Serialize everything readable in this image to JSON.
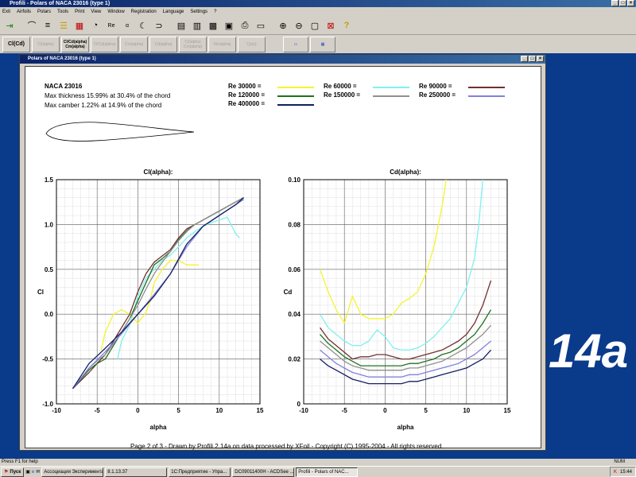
{
  "window": {
    "title": "Profili - Polars of NACA 23016 (type 1)"
  },
  "menu": [
    "Exit",
    "Airfoils",
    "Polars",
    "Tools",
    "Print",
    "View",
    "Window",
    "Registration",
    "Language",
    "Settings",
    "?"
  ],
  "toolbar2": [
    {
      "label": "Cl(Cd)",
      "active": true
    },
    {
      "label": "Cl(alpha)",
      "active": false
    },
    {
      "label": "Cl/Cd(alpha) Cm(alpha)",
      "active": true
    },
    {
      "label": "Cl/Cd(alpha)",
      "active": false
    },
    {
      "label": "Cm(alpha)",
      "active": false
    },
    {
      "label": "Cd(alpha)",
      "active": false
    },
    {
      "label": "Cl(alpha) Cm(alpha)",
      "active": false
    },
    {
      "label": "Xtr(alpha)",
      "active": false
    },
    {
      "label": "Cp(x)",
      "active": false
    }
  ],
  "child": {
    "title": "Polars of NACA 23016 (type 1)"
  },
  "airfoil": {
    "name": "NACA 23016",
    "thickness": "Max thickness 15.99% at 30.4% of the chord",
    "camber": "Max camber 1.22% at 14.9% of the chord"
  },
  "legend": [
    {
      "label": "Re 30000 =",
      "color": "#f4f430"
    },
    {
      "label": "Re 60000 =",
      "color": "#80f0f0"
    },
    {
      "label": "Re 90000 =",
      "color": "#703030"
    },
    {
      "label": "Re 120000 =",
      "color": "#207020"
    },
    {
      "label": "Re 150000 =",
      "color": "#909090"
    },
    {
      "label": "Re 250000 =",
      "color": "#8080e0"
    },
    {
      "label": "Re 400000 =",
      "color": "#102060"
    }
  ],
  "chart_data": [
    {
      "type": "line",
      "title": "Cl(alpha):",
      "xlabel": "alpha",
      "ylabel": "Cl",
      "xlim": [
        -10,
        15
      ],
      "ylim": [
        -1.0,
        1.5
      ],
      "xticks": [
        "-10",
        "-5",
        "0",
        "5",
        "10",
        "15"
      ],
      "yticks": [
        "-1.0",
        "-0.5",
        "0.0",
        "0.5",
        "1.0",
        "1.5"
      ],
      "grid": true,
      "series": [
        {
          "name": "Re 30000",
          "x": [
            -4.5,
            -4,
            -3,
            -2,
            -1,
            0,
            1,
            1.5,
            2,
            3,
            4,
            5,
            6,
            7.5
          ],
          "y": [
            -0.4,
            -0.2,
            0.0,
            0.05,
            0.0,
            -0.1,
            0.02,
            0.15,
            0.35,
            0.5,
            0.6,
            0.6,
            0.55,
            0.55
          ]
        },
        {
          "name": "Re 60000",
          "x": [
            -2.5,
            -2,
            -1,
            0,
            1,
            2,
            3,
            4,
            5,
            6,
            7,
            8,
            9,
            10,
            11,
            12,
            12.5
          ],
          "y": [
            -0.5,
            -0.3,
            -0.12,
            0.2,
            0.4,
            0.5,
            0.6,
            0.66,
            0.75,
            0.85,
            0.92,
            0.98,
            1.02,
            1.05,
            1.08,
            0.9,
            0.85
          ]
        },
        {
          "name": "Re 90000",
          "x": [
            -8,
            -6,
            -5,
            -4,
            -3,
            -2,
            -1,
            0,
            1,
            2,
            3,
            4,
            5,
            6,
            7,
            8,
            9,
            10,
            11,
            12,
            13
          ],
          "y": [
            -0.83,
            -0.65,
            -0.55,
            -0.45,
            -0.3,
            -0.15,
            0.0,
            0.25,
            0.45,
            0.58,
            0.65,
            0.72,
            0.85,
            0.95,
            1.0,
            1.05,
            1.1,
            1.15,
            1.2,
            1.25,
            1.3
          ]
        },
        {
          "name": "Re 120000",
          "x": [
            -8,
            -6,
            -5,
            -4,
            -3,
            -2,
            -1,
            0,
            1,
            2,
            3,
            4,
            5,
            6,
            7,
            8,
            9,
            10,
            11,
            12,
            13
          ],
          "y": [
            -0.83,
            -0.62,
            -0.55,
            -0.5,
            -0.35,
            -0.2,
            -0.05,
            0.15,
            0.35,
            0.55,
            0.62,
            0.7,
            0.83,
            0.93,
            1.0,
            1.05,
            1.1,
            1.15,
            1.2,
            1.25,
            1.3
          ]
        },
        {
          "name": "Re 150000",
          "x": [
            -8,
            -6,
            -5,
            -4,
            -3,
            -2,
            -1,
            0,
            1,
            2,
            3,
            4,
            5,
            6,
            7,
            8,
            9,
            10,
            11,
            12,
            13
          ],
          "y": [
            -0.83,
            -0.6,
            -0.52,
            -0.45,
            -0.33,
            -0.2,
            -0.05,
            0.1,
            0.28,
            0.45,
            0.58,
            0.7,
            0.82,
            0.92,
            1.0,
            1.05,
            1.1,
            1.15,
            1.2,
            1.25,
            1.3
          ]
        },
        {
          "name": "Re 250000",
          "x": [
            -8,
            -6,
            -4,
            -2,
            0,
            2,
            4,
            6,
            8,
            10,
            12,
            13
          ],
          "y": [
            -0.83,
            -0.6,
            -0.42,
            -0.22,
            0.0,
            0.22,
            0.45,
            0.75,
            0.98,
            1.1,
            1.22,
            1.28
          ]
        },
        {
          "name": "Re 400000",
          "x": [
            -8,
            -6,
            -4,
            -2,
            0,
            2,
            4,
            6,
            8,
            10,
            12,
            13
          ],
          "y": [
            -0.83,
            -0.55,
            -0.38,
            -0.2,
            0.0,
            0.2,
            0.45,
            0.78,
            0.98,
            1.1,
            1.22,
            1.3
          ]
        }
      ]
    },
    {
      "type": "line",
      "title": "Cd(alpha):",
      "xlabel": "alpha",
      "ylabel": "Cd",
      "xlim": [
        -10,
        15
      ],
      "ylim": [
        0,
        0.1
      ],
      "xticks": [
        "-10",
        "-5",
        "0",
        "5",
        "10",
        "15"
      ],
      "yticks": [
        "0",
        "0.02",
        "0.04",
        "0.06",
        "0.08",
        "0.10"
      ],
      "grid": true,
      "series": [
        {
          "name": "Re 30000",
          "x": [
            -8,
            -7,
            -6,
            -5,
            -4,
            -3,
            -2,
            -1,
            0,
            1,
            2,
            3,
            4,
            5,
            6,
            7,
            7.5
          ],
          "y": [
            0.06,
            0.05,
            0.042,
            0.036,
            0.048,
            0.04,
            0.038,
            0.038,
            0.038,
            0.04,
            0.045,
            0.047,
            0.05,
            0.058,
            0.07,
            0.088,
            0.1
          ]
        },
        {
          "name": "Re 60000",
          "x": [
            -8,
            -7,
            -6,
            -5,
            -4,
            -3,
            -2,
            -1,
            0,
            1,
            2,
            3,
            4,
            5,
            6,
            7,
            8,
            9,
            10,
            11,
            11.5,
            12
          ],
          "y": [
            0.04,
            0.034,
            0.031,
            0.028,
            0.026,
            0.026,
            0.028,
            0.033,
            0.03,
            0.025,
            0.024,
            0.024,
            0.025,
            0.027,
            0.03,
            0.034,
            0.038,
            0.045,
            0.052,
            0.065,
            0.08,
            0.1
          ]
        },
        {
          "name": "Re 90000",
          "x": [
            -8,
            -7,
            -6,
            -5,
            -4,
            -3,
            -2,
            -1,
            0,
            1,
            2,
            3,
            4,
            5,
            6,
            7,
            8,
            9,
            10,
            11,
            12,
            13
          ],
          "y": [
            0.034,
            0.029,
            0.026,
            0.023,
            0.02,
            0.021,
            0.021,
            0.022,
            0.022,
            0.021,
            0.02,
            0.02,
            0.021,
            0.022,
            0.023,
            0.024,
            0.026,
            0.028,
            0.031,
            0.036,
            0.044,
            0.055
          ]
        },
        {
          "name": "Re 120000",
          "x": [
            -8,
            -7,
            -6,
            -5,
            -4,
            -3,
            -2,
            -1,
            0,
            1,
            2,
            3,
            4,
            5,
            6,
            7,
            8,
            9,
            10,
            11,
            12,
            13
          ],
          "y": [
            0.031,
            0.027,
            0.024,
            0.021,
            0.019,
            0.017,
            0.017,
            0.017,
            0.017,
            0.017,
            0.017,
            0.018,
            0.018,
            0.019,
            0.02,
            0.022,
            0.023,
            0.025,
            0.028,
            0.031,
            0.036,
            0.042
          ]
        },
        {
          "name": "Re 150000",
          "x": [
            -8,
            -7,
            -6,
            -5,
            -4,
            -3,
            -2,
            -1,
            0,
            1,
            2,
            3,
            4,
            5,
            6,
            7,
            8,
            9,
            10,
            11,
            12,
            13
          ],
          "y": [
            0.028,
            0.025,
            0.022,
            0.019,
            0.017,
            0.016,
            0.015,
            0.015,
            0.015,
            0.015,
            0.015,
            0.016,
            0.016,
            0.017,
            0.018,
            0.019,
            0.021,
            0.023,
            0.025,
            0.028,
            0.031,
            0.035
          ]
        },
        {
          "name": "Re 250000",
          "x": [
            -8,
            -7,
            -6,
            -5,
            -4,
            -3,
            -2,
            -1,
            0,
            1,
            2,
            3,
            4,
            5,
            6,
            7,
            8,
            9,
            10,
            11,
            12,
            13
          ],
          "y": [
            0.024,
            0.021,
            0.018,
            0.016,
            0.014,
            0.013,
            0.012,
            0.012,
            0.012,
            0.012,
            0.012,
            0.013,
            0.013,
            0.014,
            0.015,
            0.016,
            0.017,
            0.018,
            0.02,
            0.022,
            0.025,
            0.028
          ]
        },
        {
          "name": "Re 400000",
          "x": [
            -8,
            -7,
            -6,
            -5,
            -4,
            -3,
            -2,
            -1,
            0,
            1,
            2,
            3,
            4,
            5,
            6,
            7,
            8,
            9,
            10,
            11,
            12,
            13
          ],
          "y": [
            0.02,
            0.017,
            0.015,
            0.013,
            0.011,
            0.01,
            0.009,
            0.009,
            0.009,
            0.009,
            0.009,
            0.01,
            0.01,
            0.011,
            0.012,
            0.013,
            0.014,
            0.015,
            0.016,
            0.018,
            0.02,
            0.024
          ]
        }
      ]
    }
  ],
  "footer": "Page 2 of 3   -   Drawn by Profili 2.14a on data processed by  XFoil - Copyright (C) 1995-2004 - All rights reserved.",
  "desktop_logo": "14a",
  "status": {
    "help": "Press F1 for help",
    "num": "NUM"
  },
  "taskbar": {
    "start": "Пуск",
    "tasks": [
      {
        "label": "Ассоциация Эксперименталь...",
        "active": false
      },
      {
        "label": "8.1.13.37",
        "active": false
      },
      {
        "label": "1С:Предприятие - Упра...",
        "active": false
      },
      {
        "label": "DC09011400H - ACDSee ...",
        "active": false
      },
      {
        "label": "Profili - Polars of NAC...",
        "active": true
      }
    ],
    "clock": "15:44"
  }
}
